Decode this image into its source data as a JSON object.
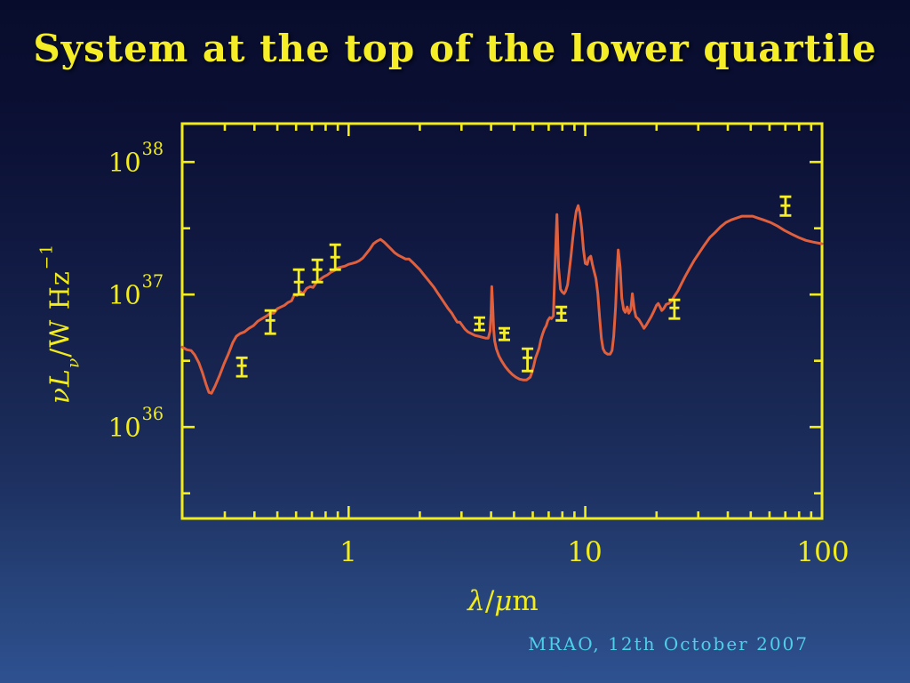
{
  "slide": {
    "title": "System at the top of the lower quartile",
    "footer": "MRAO, 12th October 2007"
  },
  "colors": {
    "background_top": "#080c2c",
    "background_bottom": "#2e5190",
    "title_yellow": "#f5ee26",
    "axis_yellow": "#f2ec1d",
    "curve_orange": "#e0603e",
    "footer_cyan": "#4fd0e8"
  },
  "chart_data": {
    "type": "line",
    "title": "System at the top of the lower quartile",
    "legend": "none",
    "grid": "off",
    "x_axis": {
      "label": "λ/μm",
      "title_parts": {
        "p1": "λ",
        "p2": "/",
        "p3": "μ",
        "p4": "m"
      },
      "scale": "log",
      "range_um": [
        0.198,
        100.1
      ],
      "major_ticks": [
        1,
        10,
        100
      ],
      "tick_labels": [
        "1",
        "10",
        "100"
      ],
      "minor_ticks": [
        0.3,
        0.4,
        0.5,
        0.6,
        0.7,
        0.8,
        0.9,
        2,
        3,
        4,
        5,
        6,
        7,
        8,
        9,
        20,
        30,
        40,
        50,
        60,
        70,
        80,
        90
      ]
    },
    "y_axis": {
      "label": "νLν/W Hz−1",
      "title_parts": {
        "main": "νL",
        "sub": "ν",
        "unit": "/W Hz",
        "sup": "−1"
      },
      "scale": "log",
      "range_log10": [
        35.31,
        38.29
      ],
      "major_ticks_log10": [
        36,
        37,
        38
      ],
      "tick_labels": [
        {
          "base": "10",
          "exp": "38"
        },
        {
          "base": "10",
          "exp": "37"
        },
        {
          "base": "10",
          "exp": "36"
        }
      ],
      "minor_ticks_log10": [
        35.5,
        36.5,
        37.5
      ]
    },
    "model_curve": {
      "name": "model SED curve",
      "loglam": [
        -0.703,
        -0.684,
        -0.665,
        -0.65,
        -0.632,
        -0.617,
        -0.602,
        -0.59,
        -0.579,
        -0.564,
        -0.545,
        -0.526,
        -0.508,
        -0.489,
        -0.474,
        -0.459,
        -0.44,
        -0.421,
        -0.402,
        -0.383,
        -0.365,
        -0.346,
        -0.331,
        -0.316,
        -0.301,
        -0.286,
        -0.271,
        -0.256,
        -0.241,
        -0.229,
        -0.218,
        -0.203,
        -0.192,
        -0.177,
        -0.162,
        -0.15,
        -0.135,
        -0.12,
        -0.105,
        -0.09,
        -0.075,
        -0.06,
        -0.045,
        -0.03,
        -0.015,
        0.0,
        0.015,
        0.03,
        0.045,
        0.06,
        0.075,
        0.09,
        0.105,
        0.12,
        0.135,
        0.15,
        0.165,
        0.18,
        0.195,
        0.211,
        0.226,
        0.241,
        0.256,
        0.271,
        0.286,
        0.301,
        0.316,
        0.331,
        0.346,
        0.361,
        0.376,
        0.391,
        0.406,
        0.421,
        0.436,
        0.447,
        0.459,
        0.47,
        0.481,
        0.492,
        0.504,
        0.519,
        0.534,
        0.549,
        0.564,
        0.579,
        0.59,
        0.598,
        0.602,
        0.605,
        0.609,
        0.613,
        0.617,
        0.624,
        0.635,
        0.647,
        0.662,
        0.677,
        0.692,
        0.707,
        0.722,
        0.737,
        0.752,
        0.767,
        0.774,
        0.782,
        0.789,
        0.797,
        0.805,
        0.812,
        0.82,
        0.827,
        0.835,
        0.842,
        0.85,
        0.857,
        0.865,
        0.872,
        0.88,
        0.887,
        0.895,
        0.902,
        0.91,
        0.917,
        0.925,
        0.932,
        0.94,
        0.947,
        0.955,
        0.962,
        0.97,
        0.977,
        0.985,
        0.992,
        1.0,
        1.008,
        1.015,
        1.023,
        1.03,
        1.038,
        1.045,
        1.053,
        1.06,
        1.068,
        1.075,
        1.083,
        1.094,
        1.105,
        1.113,
        1.12,
        1.128,
        1.135,
        1.139,
        1.147,
        1.154,
        1.162,
        1.169,
        1.177,
        1.184,
        1.192,
        1.199,
        1.207,
        1.214,
        1.226,
        1.237,
        1.248,
        1.256,
        1.267,
        1.278,
        1.289,
        1.301,
        1.308,
        1.316,
        1.323,
        1.331,
        1.342,
        1.353,
        1.365,
        1.376,
        1.391,
        1.406,
        1.421,
        1.44,
        1.459,
        1.481,
        1.504,
        1.526,
        1.549,
        1.571,
        1.594,
        1.617,
        1.639,
        1.662,
        1.684,
        1.707,
        1.729,
        1.752,
        1.782,
        1.812,
        1.842,
        1.872,
        1.902,
        1.932,
        1.962,
        2.0
      ],
      "logl": [
        36.604,
        36.584,
        36.577,
        36.544,
        36.483,
        36.409,
        36.322,
        36.262,
        36.255,
        36.309,
        36.389,
        36.477,
        36.55,
        36.638,
        36.685,
        36.705,
        36.718,
        36.745,
        36.765,
        36.799,
        36.819,
        36.839,
        36.859,
        36.859,
        36.893,
        36.906,
        36.919,
        36.94,
        36.953,
        37.0,
        36.993,
        37.02,
        37.007,
        37.047,
        37.06,
        37.054,
        37.094,
        37.114,
        37.134,
        37.148,
        37.168,
        37.181,
        37.201,
        37.208,
        37.215,
        37.228,
        37.235,
        37.242,
        37.255,
        37.275,
        37.309,
        37.342,
        37.383,
        37.403,
        37.416,
        37.396,
        37.369,
        37.342,
        37.315,
        37.295,
        37.282,
        37.268,
        37.268,
        37.242,
        37.215,
        37.188,
        37.154,
        37.121,
        37.087,
        37.054,
        37.013,
        36.973,
        36.933,
        36.893,
        36.859,
        36.826,
        36.792,
        36.792,
        36.765,
        36.738,
        36.718,
        36.705,
        36.691,
        36.685,
        36.678,
        36.671,
        36.671,
        36.725,
        36.859,
        37.06,
        36.906,
        36.738,
        36.651,
        36.591,
        36.537,
        36.497,
        36.456,
        36.423,
        36.396,
        36.376,
        36.362,
        36.356,
        36.356,
        36.376,
        36.409,
        36.463,
        36.517,
        36.557,
        36.597,
        36.658,
        36.705,
        36.738,
        36.765,
        36.805,
        36.826,
        36.819,
        36.839,
        37.208,
        37.604,
        37.208,
        37.04,
        37.02,
        37.007,
        37.027,
        37.074,
        37.174,
        37.295,
        37.423,
        37.544,
        37.631,
        37.671,
        37.617,
        37.497,
        37.342,
        37.235,
        37.228,
        37.275,
        37.289,
        37.228,
        37.168,
        37.121,
        37.007,
        36.839,
        36.671,
        36.591,
        36.564,
        36.55,
        36.55,
        36.577,
        36.685,
        36.906,
        37.208,
        37.336,
        37.208,
        36.973,
        36.886,
        36.866,
        36.906,
        36.859,
        36.886,
        37.007,
        36.886,
        36.832,
        36.812,
        36.779,
        36.745,
        36.765,
        36.799,
        36.832,
        36.872,
        36.919,
        36.933,
        36.906,
        36.879,
        36.893,
        36.926,
        36.933,
        36.953,
        36.987,
        37.027,
        37.081,
        37.134,
        37.195,
        37.255,
        37.315,
        37.376,
        37.43,
        37.47,
        37.51,
        37.544,
        37.564,
        37.577,
        37.591,
        37.591,
        37.591,
        37.577,
        37.564,
        37.544,
        37.517,
        37.483,
        37.456,
        37.43,
        37.409,
        37.396,
        37.383
      ]
    },
    "data_points": [
      {
        "lambda_um": 0.354,
        "logl": 36.463,
        "logl_lo": 36.383,
        "logl_hi": 36.523
      },
      {
        "lambda_um": 0.467,
        "logl": 36.805,
        "logl_lo": 36.705,
        "logl_hi": 36.879
      },
      {
        "lambda_um": 0.616,
        "logl": 37.094,
        "logl_lo": 37.0,
        "logl_hi": 37.188
      },
      {
        "lambda_um": 0.738,
        "logl": 37.188,
        "logl_lo": 37.094,
        "logl_hi": 37.262
      },
      {
        "lambda_um": 0.878,
        "logl": 37.282,
        "logl_lo": 37.188,
        "logl_hi": 37.376
      },
      {
        "lambda_um": 3.57,
        "logl": 36.779,
        "logl_lo": 36.732,
        "logl_hi": 36.826
      },
      {
        "lambda_um": 4.55,
        "logl": 36.711,
        "logl_lo": 36.658,
        "logl_hi": 36.745
      },
      {
        "lambda_um": 5.7,
        "logl": 36.523,
        "logl_lo": 36.423,
        "logl_hi": 36.591
      },
      {
        "lambda_um": 7.92,
        "logl": 36.859,
        "logl_lo": 36.805,
        "logl_hi": 36.906
      },
      {
        "lambda_um": 23.8,
        "logl": 36.899,
        "logl_lo": 36.819,
        "logl_hi": 36.96
      },
      {
        "lambda_um": 70.1,
        "logl": 37.671,
        "logl_lo": 37.597,
        "logl_hi": 37.738
      }
    ]
  }
}
